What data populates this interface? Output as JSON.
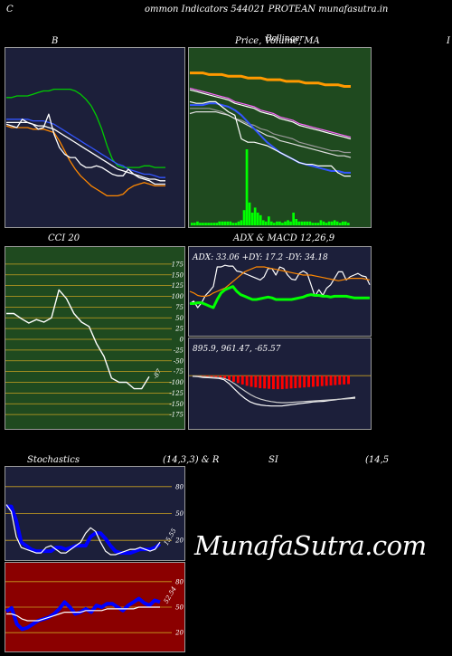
{
  "page": {
    "edge_left": "C",
    "title": "ommon  Indicators 544021 PROTEAN  munafasutra.in",
    "brand": "MunafaSutra.com"
  },
  "labels": {
    "b": "B",
    "price": "Price,  Volume, MA",
    "price_overlay": "Bollinger",
    "edge_right": "I",
    "cci": "CCI 20",
    "adx_macd": "ADX  & MACD 12,26,9",
    "stoch": "Stochastics",
    "stoch_params": "(14,3,3) & R",
    "rsi": "SI",
    "rsi_params": "(14,5"
  },
  "colors": {
    "bb_bg": "#1c1f3a",
    "price_bg": "#1f4a1f",
    "cci_bg": "#1f4a1f",
    "adx_bg": "#1c1f3a",
    "stoch_bg": "#1c1f3a",
    "rsi_bg": "#8b0000"
  },
  "chart_data": [
    {
      "type": "line",
      "name": "bollinger",
      "ylim": [
        0,
        100
      ],
      "series": [
        {
          "color": "#00cc00",
          "values": [
            74,
            74,
            75,
            75,
            75,
            76,
            77,
            78,
            78,
            79,
            79,
            79,
            79,
            78,
            76,
            73,
            69,
            63,
            55,
            45,
            37,
            33,
            32,
            32,
            32,
            32,
            33,
            33,
            32,
            32,
            32
          ]
        },
        {
          "color": "#3355ff",
          "values": [
            61,
            61,
            61,
            61,
            61,
            60,
            60,
            60,
            59,
            58,
            56,
            54,
            52,
            50,
            48,
            46,
            44,
            42,
            40,
            38,
            36,
            34,
            33,
            31,
            30,
            29,
            28,
            28,
            27,
            26,
            26
          ]
        },
        {
          "color": "#ffffff",
          "values": [
            59,
            59,
            59,
            59,
            59,
            58,
            57,
            57,
            56,
            55,
            53,
            51,
            49,
            47,
            45,
            43,
            41,
            39,
            37,
            35,
            33,
            31,
            30,
            29,
            28,
            27,
            26,
            25,
            25,
            24,
            24
          ]
        },
        {
          "color": "#ff8800",
          "values": [
            57,
            56,
            56,
            56,
            56,
            55,
            55,
            55,
            54,
            53,
            48,
            42,
            36,
            31,
            27,
            24,
            21,
            19,
            17,
            15,
            15,
            15,
            16,
            19,
            21,
            22,
            23,
            22,
            21,
            21,
            21
          ]
        },
        {
          "color": "#ffffff",
          "values": [
            58,
            57,
            56,
            61,
            59,
            58,
            55,
            56,
            64,
            52,
            44,
            40,
            38,
            38,
            34,
            32,
            32,
            33,
            32,
            30,
            28,
            27,
            27,
            31,
            28,
            26,
            25,
            24,
            22,
            22,
            22
          ]
        }
      ]
    },
    {
      "type": "line",
      "name": "price_volume",
      "ylim": [
        0,
        100
      ],
      "series": [
        {
          "color": "#ff9900",
          "width": 3,
          "values": [
            89,
            89,
            89,
            88,
            88,
            88,
            87,
            87,
            87,
            86,
            86,
            86,
            85,
            85,
            85,
            84,
            84,
            84,
            83,
            83,
            83,
            82,
            82,
            82,
            81,
            81
          ]
        },
        {
          "color": "#ff66ff",
          "values": [
            80,
            79,
            78,
            77,
            76,
            75,
            74,
            72,
            71,
            70,
            69,
            67,
            66,
            65,
            63,
            62,
            61,
            59,
            58,
            57,
            56,
            55,
            54,
            53,
            52,
            51
          ]
        },
        {
          "color": "#ffffff",
          "values": [
            79,
            78,
            77,
            76,
            75,
            74,
            73,
            71,
            70,
            69,
            68,
            66,
            65,
            64,
            62,
            61,
            60,
            58,
            57,
            56,
            55,
            54,
            53,
            52,
            51,
            50
          ]
        },
        {
          "color": "#999999",
          "values": [
            68,
            68,
            68,
            68,
            67,
            66,
            64,
            62,
            61,
            59,
            58,
            56,
            55,
            53,
            52,
            51,
            50,
            48,
            47,
            46,
            45,
            44,
            43,
            43,
            42,
            42
          ]
        },
        {
          "color": "#dddddd",
          "values": [
            65,
            66,
            66,
            66,
            66,
            65,
            64,
            62,
            60,
            58,
            56,
            54,
            52,
            51,
            49,
            48,
            47,
            46,
            45,
            44,
            43,
            42,
            41,
            40,
            40,
            39
          ]
        },
        {
          "color": "#3355ff",
          "width": 2,
          "values": [
            70,
            70,
            70,
            71,
            71,
            70,
            69,
            67,
            64,
            60,
            56,
            52,
            48,
            45,
            42,
            40,
            38,
            36,
            35,
            34,
            33,
            32,
            31,
            31,
            30,
            30
          ]
        },
        {
          "color": "#ffffff",
          "values": [
            72,
            71,
            71,
            72,
            72,
            69,
            66,
            64,
            50,
            48,
            48,
            47,
            46,
            44,
            42,
            40,
            38,
            36,
            35,
            35,
            34,
            34,
            34,
            30,
            28,
            28
          ]
        }
      ],
      "volume": [
        2,
        2,
        3,
        2,
        2,
        2,
        2,
        2,
        2,
        2,
        3,
        3,
        3,
        3,
        3,
        2,
        2,
        3,
        4,
        12,
        60,
        18,
        10,
        14,
        10,
        8,
        4,
        3,
        7,
        3,
        2,
        3,
        3,
        2,
        3,
        4,
        3,
        10,
        5,
        3,
        3,
        3,
        3,
        3,
        2,
        2,
        2,
        4,
        3,
        2,
        3,
        3,
        4,
        3,
        2,
        3,
        3,
        2
      ]
    },
    {
      "type": "line",
      "name": "cci",
      "ylim": [
        -200,
        200
      ],
      "ticks": [
        "175",
        "150",
        "125",
        "100",
        "75",
        "50",
        "25",
        "0",
        "-25",
        "-50",
        "-75",
        "-100",
        "-125",
        "-150",
        "-175"
      ],
      "tick_values": [
        175,
        150,
        125,
        100,
        75,
        50,
        25,
        0,
        -25,
        -50,
        -75,
        -100,
        -125,
        -150,
        -175
      ],
      "last_label": "-87",
      "values": [
        60,
        60,
        48,
        38,
        46,
        40,
        50,
        115,
        95,
        60,
        40,
        30,
        -10,
        -40,
        -90,
        -100,
        -100,
        -115,
        -115,
        -87
      ]
    },
    {
      "type": "line",
      "name": "adx",
      "overlay": "ADX: 33.06   +DY: 17.2   -DY: 34.18",
      "ylim": [
        0,
        100
      ],
      "series": [
        {
          "color": "#ffffff",
          "values": [
            35,
            38,
            30,
            36,
            45,
            50,
            56,
            80,
            80,
            82,
            81,
            81,
            75,
            74,
            72,
            70,
            68,
            66,
            64,
            68,
            78,
            78,
            70,
            80,
            78,
            70,
            65,
            64,
            72,
            75,
            72,
            58,
            44,
            52,
            45,
            54,
            58,
            66,
            74,
            74,
            64,
            68,
            70,
            72,
            69,
            68,
            58
          ]
        },
        {
          "color": "#ff8800",
          "values": [
            50,
            48,
            45,
            44,
            44,
            45,
            48,
            50,
            52,
            54,
            58,
            62,
            66,
            70,
            74,
            76,
            78,
            80,
            80,
            80,
            79,
            78,
            77,
            76,
            75,
            74,
            73,
            72,
            71,
            70,
            70,
            70,
            69,
            68,
            67,
            66,
            65,
            64,
            63,
            64,
            65,
            66,
            66,
            66,
            66,
            65,
            64
          ]
        },
        {
          "color": "#00ff00",
          "width": 3,
          "values": [
            35,
            35,
            36,
            36,
            34,
            32,
            30,
            40,
            48,
            52,
            54,
            56,
            50,
            46,
            44,
            42,
            40,
            40,
            41,
            42,
            43,
            42,
            40,
            40,
            40,
            40,
            40,
            41,
            42,
            43,
            45,
            46,
            45,
            45,
            44,
            44,
            43,
            44,
            44,
            44,
            44,
            43,
            42,
            42,
            42,
            42,
            42
          ]
        }
      ]
    },
    {
      "type": "bar",
      "name": "macd",
      "overlay": "895.9,   961.47,   -65.57",
      "ylim": [
        -150,
        100
      ],
      "histogram": [
        -2,
        -3,
        -4,
        -4,
        -5,
        -6,
        -8,
        -10,
        -14,
        -18,
        -22,
        -26,
        -30,
        -33,
        -35,
        -37,
        -38,
        -39,
        -40,
        -40,
        -40,
        -39,
        -38,
        -37,
        -36,
        -35,
        -34,
        -33,
        -32,
        -31,
        -30,
        -29,
        -28,
        -27,
        -26,
        -25
      ],
      "series": [
        {
          "color": "#ffffff",
          "values": [
            -2,
            -3,
            -5,
            -6,
            -7,
            -8,
            -12,
            -24,
            -40,
            -55,
            -68,
            -78,
            -84,
            -87,
            -89,
            -90,
            -90,
            -90,
            -88,
            -86,
            -84,
            -82,
            -80,
            -78,
            -77,
            -76,
            -74,
            -72,
            -70,
            -68,
            -66,
            -64
          ]
        },
        {
          "color": "#cccccc",
          "values": [
            -1,
            -2,
            -3,
            -4,
            -5,
            -6,
            -8,
            -14,
            -24,
            -35,
            -46,
            -56,
            -64,
            -70,
            -74,
            -77,
            -79,
            -80,
            -80,
            -79,
            -78,
            -77,
            -76,
            -75,
            -74,
            -73,
            -72,
            -71,
            -70,
            -69,
            -68,
            -67
          ]
        }
      ]
    },
    {
      "type": "line",
      "name": "stochastics",
      "ylim": [
        0,
        100
      ],
      "ticks": [
        "80",
        "50",
        "20"
      ],
      "tick_values": [
        80,
        50,
        20
      ],
      "last_label": "15.55",
      "series": [
        {
          "color": "#0000ff",
          "width": 4,
          "values": [
            58,
            58,
            42,
            18,
            14,
            10,
            8,
            8,
            8,
            8,
            12,
            12,
            10,
            12,
            14,
            14,
            14,
            24,
            28,
            28,
            22,
            14,
            8,
            6,
            6,
            6,
            8,
            10,
            10,
            10,
            12,
            16
          ]
        },
        {
          "color": "#ffffff",
          "values": [
            60,
            52,
            24,
            12,
            10,
            8,
            6,
            6,
            12,
            14,
            10,
            6,
            6,
            10,
            14,
            18,
            28,
            34,
            30,
            18,
            8,
            4,
            4,
            6,
            8,
            10,
            10,
            12,
            10,
            8,
            10,
            18
          ]
        }
      ]
    },
    {
      "type": "line",
      "name": "rsi",
      "ylim": [
        0,
        100
      ],
      "ticks": [
        "80",
        "50",
        "20"
      ],
      "tick_values": [
        80,
        50,
        20
      ],
      "last_label": "52.54",
      "series": [
        {
          "color": "#0000ff",
          "width": 4,
          "values": [
            45,
            49,
            30,
            24,
            26,
            30,
            34,
            36,
            38,
            42,
            48,
            56,
            50,
            42,
            44,
            48,
            44,
            52,
            50,
            54,
            54,
            50,
            46,
            52,
            56,
            60,
            55,
            52,
            58,
            56
          ]
        },
        {
          "color": "#ffffff",
          "values": [
            42,
            42,
            40,
            36,
            34,
            34,
            34,
            36,
            38,
            40,
            42,
            44,
            44,
            44,
            44,
            46,
            46,
            46,
            46,
            48,
            48,
            48,
            48,
            48,
            48,
            50,
            50,
            50,
            50,
            50
          ]
        }
      ]
    }
  ]
}
